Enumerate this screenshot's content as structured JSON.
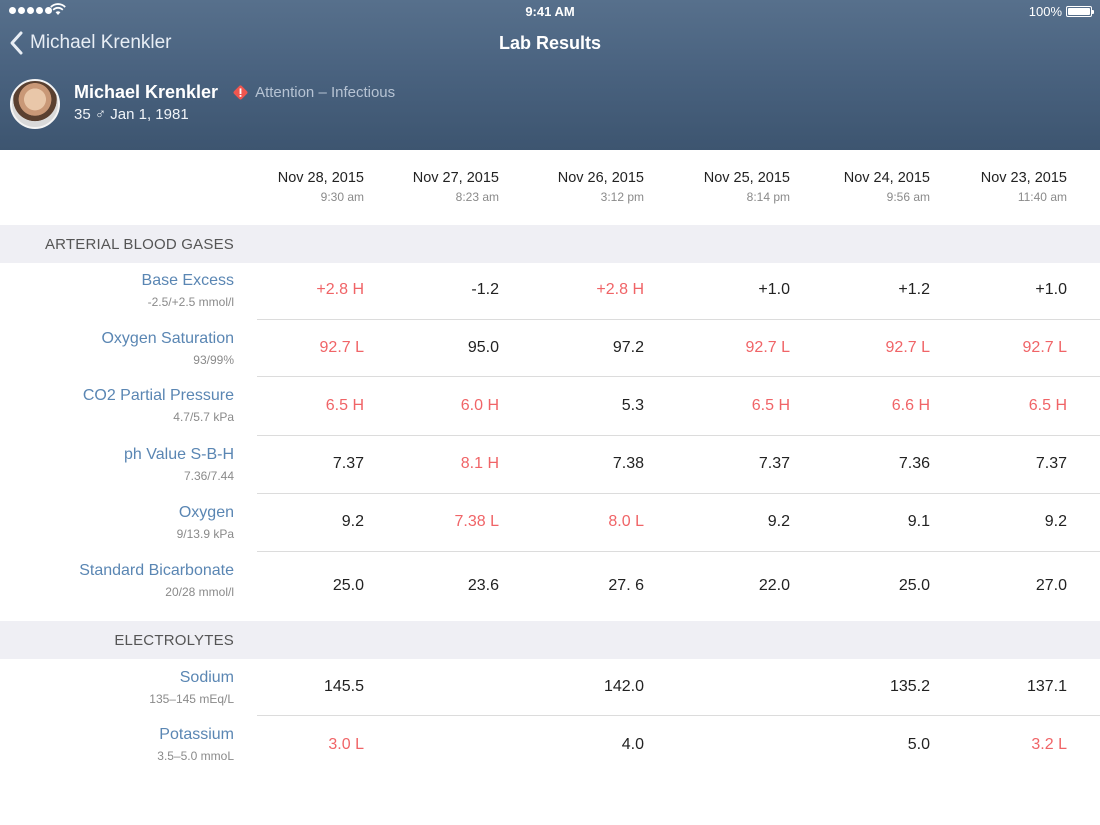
{
  "status_bar": {
    "time": "9:41 AM",
    "battery": "100%"
  },
  "nav": {
    "back_label": "Michael Krenkler",
    "title": "Lab Results"
  },
  "patient": {
    "name": "Michael Krenkler",
    "alert": "Attention – Infectious",
    "meta": "35 ♂ Jan 1, 1981"
  },
  "columns": [
    {
      "date": "Nov 28, 2015",
      "time": "9:30 am"
    },
    {
      "date": "Nov 27, 2015",
      "time": "8:23 am"
    },
    {
      "date": "Nov 26, 2015",
      "time": "3:12 pm"
    },
    {
      "date": "Nov 25, 2015",
      "time": "8:14 pm"
    },
    {
      "date": "Nov 24, 2015",
      "time": "9:56 am"
    },
    {
      "date": "Nov 23, 2015",
      "time": "11:40 am"
    }
  ],
  "colors": {
    "normal": "#222222",
    "abnormal": "#f06467",
    "test_name": "#5a86b3",
    "header": "#4a6380"
  },
  "sections": [
    {
      "title": "ARTERIAL BLOOD GASES",
      "rows": [
        {
          "name": "Base Excess",
          "range": "-2.5/+2.5 mmol/l",
          "values": [
            {
              "v": "+2.8 H",
              "abn": true
            },
            {
              "v": "-1.2",
              "abn": false
            },
            {
              "v": "+2.8 H",
              "abn": true
            },
            {
              "v": "+1.0",
              "abn": false
            },
            {
              "v": "+1.2",
              "abn": false
            },
            {
              "v": "+1.0",
              "abn": false
            }
          ]
        },
        {
          "name": "Oxygen Saturation",
          "range": "93/99%",
          "values": [
            {
              "v": "92.7 L",
              "abn": true
            },
            {
              "v": "95.0",
              "abn": false
            },
            {
              "v": "97.2",
              "abn": false
            },
            {
              "v": "92.7 L",
              "abn": true
            },
            {
              "v": "92.7 L",
              "abn": true
            },
            {
              "v": "92.7 L",
              "abn": true
            }
          ]
        },
        {
          "name": "CO2 Partial Pressure",
          "range": "4.7/5.7 kPa",
          "values": [
            {
              "v": "6.5 H",
              "abn": true
            },
            {
              "v": "6.0 H",
              "abn": true
            },
            {
              "v": "5.3",
              "abn": false
            },
            {
              "v": "6.5 H",
              "abn": true
            },
            {
              "v": "6.6 H",
              "abn": true
            },
            {
              "v": "6.5 H",
              "abn": true
            }
          ]
        },
        {
          "name": "ph Value S-B-H",
          "range": "7.36/7.44",
          "values": [
            {
              "v": "7.37",
              "abn": false
            },
            {
              "v": "8.1 H",
              "abn": true
            },
            {
              "v": "7.38",
              "abn": false
            },
            {
              "v": "7.37",
              "abn": false
            },
            {
              "v": "7.36",
              "abn": false
            },
            {
              "v": "7.37",
              "abn": false
            }
          ]
        },
        {
          "name": "Oxygen",
          "range": "9/13.9 kPa",
          "values": [
            {
              "v": "9.2",
              "abn": false
            },
            {
              "v": "7.38 L",
              "abn": true
            },
            {
              "v": "8.0 L",
              "abn": true
            },
            {
              "v": "9.2",
              "abn": false
            },
            {
              "v": "9.1",
              "abn": false
            },
            {
              "v": "9.2",
              "abn": false
            }
          ]
        },
        {
          "name": "Standard Bicarbonate",
          "range": "20/28 mmol/l",
          "values": [
            {
              "v": "25.0",
              "abn": false
            },
            {
              "v": "23.6",
              "abn": false
            },
            {
              "v": "27. 6",
              "abn": false
            },
            {
              "v": "22.0",
              "abn": false
            },
            {
              "v": "25.0",
              "abn": false
            },
            {
              "v": "27.0",
              "abn": false
            }
          ]
        }
      ]
    },
    {
      "title": "ELECTROLYTES",
      "rows": [
        {
          "name": "Sodium",
          "range": "135–145 mEq/L",
          "values": [
            {
              "v": "145.5",
              "abn": false
            },
            {
              "v": "",
              "abn": false
            },
            {
              "v": "142.0",
              "abn": false
            },
            {
              "v": "",
              "abn": false
            },
            {
              "v": "135.2",
              "abn": false
            },
            {
              "v": "137.1",
              "abn": false
            }
          ]
        },
        {
          "name": "Potassium",
          "range": "3.5–5.0 mmoL",
          "values": [
            {
              "v": "3.0 L",
              "abn": true
            },
            {
              "v": "",
              "abn": false
            },
            {
              "v": "4.0",
              "abn": false
            },
            {
              "v": "",
              "abn": false
            },
            {
              "v": "5.0",
              "abn": false
            },
            {
              "v": "3.2 L",
              "abn": true
            }
          ]
        }
      ]
    }
  ]
}
